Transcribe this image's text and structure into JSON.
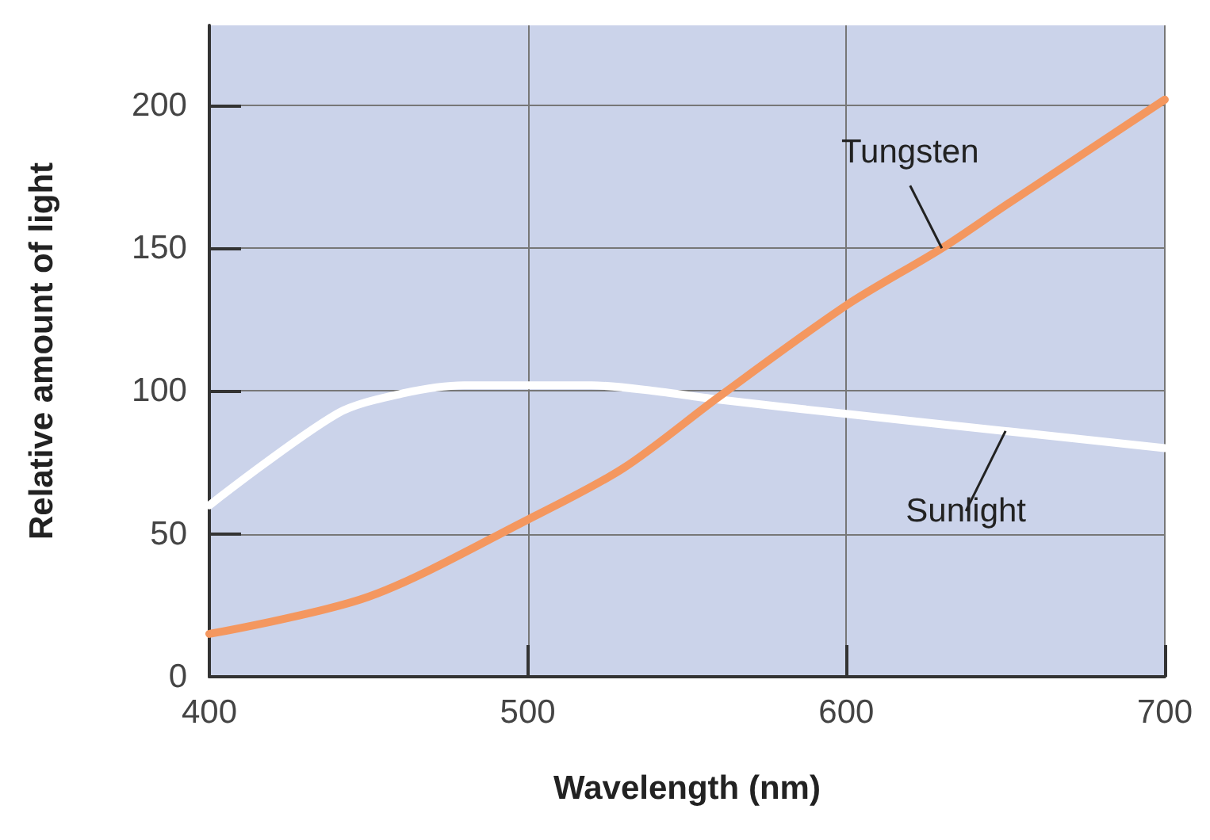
{
  "chart_data": {
    "type": "line",
    "xlabel": "Wavelength (nm)",
    "ylabel": "Relative amount of light",
    "xlim": [
      400,
      700
    ],
    "xticks": [
      400,
      500,
      600,
      700
    ],
    "ylim": [
      0,
      228
    ],
    "yticks": [
      0,
      50,
      100,
      150,
      200
    ],
    "grid": true,
    "legend": false,
    "marker": "none",
    "line_style": "solid",
    "series": [
      {
        "name": "Tungsten",
        "color": "#f4975f",
        "x": [
          400,
          450,
          500,
          530,
          560,
          600,
          630,
          650,
          700
        ],
        "values": [
          15,
          28,
          55,
          73,
          98,
          130,
          150,
          165,
          202
        ]
      },
      {
        "name": "Sunlight",
        "color": "#ffffff",
        "x": [
          400,
          440,
          460,
          480,
          520,
          540,
          560,
          600,
          650,
          700
        ],
        "values": [
          60,
          92,
          99,
          102,
          102,
          100,
          97,
          92,
          86,
          80
        ]
      }
    ]
  }
}
